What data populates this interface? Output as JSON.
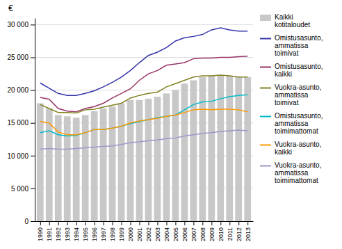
{
  "chart_data": {
    "type": "bar",
    "ylabel": "€",
    "x": [
      1990,
      1991,
      1992,
      1993,
      1994,
      1995,
      1996,
      1997,
      1998,
      1999,
      2000,
      2001,
      2002,
      2003,
      2004,
      2005,
      2006,
      2007,
      2008,
      2009,
      2010,
      2011,
      2012,
      2013
    ],
    "xlim": [
      1989.4,
      2013.6
    ],
    "xticks": [
      1990,
      1991,
      1992,
      1993,
      1994,
      1995,
      1996,
      1997,
      1998,
      1999,
      2000,
      2001,
      2002,
      2003,
      2004,
      2005,
      2006,
      2007,
      2008,
      2009,
      2010,
      2011,
      2012,
      2013
    ],
    "ylim": [
      0,
      31000
    ],
    "yticks": [
      0,
      {
        "value": 5000,
        "label": "5 000"
      },
      {
        "value": 10000,
        "label": "10 000"
      },
      {
        "value": 15000,
        "label": "15 000"
      },
      {
        "value": 20000,
        "label": "20 000"
      },
      {
        "value": 25000,
        "label": "25 000"
      },
      {
        "value": 30000,
        "label": "30 000"
      }
    ],
    "grid": true,
    "legend": "right",
    "series": [
      {
        "name": "Kaikki\nkotitaloudet",
        "type": "bar",
        "color": "#c8c8c8",
        "values": [
          18000,
          17200,
          16200,
          16000,
          15800,
          16200,
          16800,
          17200,
          17500,
          18000,
          18500,
          18500,
          18700,
          19000,
          19500,
          20000,
          21000,
          21500,
          22000,
          22200,
          22300,
          22200,
          22000,
          22000
        ]
      },
      {
        "name": "Omistusasunto,\nammatissa\ntoimivat",
        "type": "line",
        "color": "#3333aa",
        "values": [
          21100,
          20300,
          19500,
          19200,
          19200,
          19500,
          19900,
          20500,
          21200,
          22000,
          23000,
          24200,
          25300,
          25800,
          26500,
          27500,
          28000,
          28200,
          28500,
          29200,
          29500,
          29200,
          29000,
          29000
        ]
      },
      {
        "name": "Omistusasunto,\nkaikki",
        "type": "line",
        "color": "#993366",
        "values": [
          18900,
          18600,
          17200,
          16800,
          16700,
          17200,
          17500,
          18000,
          18800,
          19500,
          20200,
          21500,
          22500,
          23000,
          23800,
          24000,
          24200,
          24800,
          24900,
          24900,
          25000,
          25000,
          25100,
          25200
        ]
      },
      {
        "name": "Vuokra-asunto,\nammatissa\ntoimivat",
        "type": "line",
        "color": "#808020",
        "values": [
          17800,
          17200,
          16600,
          16600,
          16500,
          17000,
          17100,
          17400,
          17700,
          18000,
          18800,
          19200,
          19500,
          19700,
          20500,
          21000,
          21500,
          22000,
          22200,
          22200,
          22300,
          22200,
          22000,
          22000
        ]
      },
      {
        "name": "Omistusasunto,\nammatissa\ntoimimattomat",
        "type": "line",
        "color": "#00bbcc",
        "values": [
          13500,
          13800,
          13200,
          13000,
          13100,
          13500,
          14000,
          14000,
          14200,
          14500,
          14900,
          15200,
          15500,
          15800,
          16000,
          16200,
          17000,
          17800,
          18200,
          18300,
          18700,
          19000,
          19200,
          19300
        ]
      },
      {
        "name": "Vuokra-asunto,\nkaikki",
        "type": "line",
        "color": "#ff9900",
        "values": [
          15200,
          15000,
          13600,
          13200,
          13200,
          13500,
          14000,
          14000,
          14200,
          14500,
          15000,
          15300,
          15500,
          15700,
          16000,
          16200,
          16600,
          17000,
          17100,
          17000,
          17100,
          17100,
          17000,
          16700
        ]
      },
      {
        "name": "Vuokra-asunto,\nammatissa\ntoimimattomat",
        "type": "line",
        "color": "#9999cc",
        "values": [
          11000,
          11100,
          11000,
          11000,
          11100,
          11200,
          11300,
          11400,
          11500,
          11700,
          12000,
          12100,
          12300,
          12400,
          12600,
          12700,
          13000,
          13200,
          13400,
          13500,
          13700,
          13800,
          13900,
          13800
        ]
      }
    ]
  }
}
